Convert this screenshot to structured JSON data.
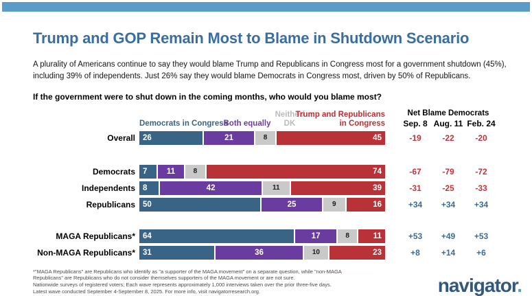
{
  "header": {
    "title": "Trump and GOP Remain Most to Blame in Shutdown Scenario",
    "subtitle": "A plurality of Americans continue to say they would blame Trump and Republicans in Congress most for a government shutdown (45%), including 39% of independents. Just 26% say they would blame Democrats in Congress most, driven by 50% of Republicans.",
    "question": "If the government were to shut down in the coming months, who would you blame most?"
  },
  "legend": {
    "democrats": "Democrats in Congress",
    "both": "Both equally",
    "neither_line1": "Neither/",
    "neither_line2": "DK",
    "trump_line1": "Trump and Republicans",
    "trump_line2": "in Congress"
  },
  "net": {
    "title": "Net Blame Democrats",
    "columns": [
      "Sep. 8",
      "Aug. 11",
      "Feb. 24"
    ]
  },
  "chart_data": {
    "type": "bar",
    "stacked": true,
    "unit": "percent",
    "title": "If the government were to shut down in the coming months, who would you blame most?",
    "categories": [
      "Overall",
      "Democrats",
      "Independents",
      "Republicans",
      "MAGA Republicans*",
      "Non-MAGA Republicans*"
    ],
    "series_labels": [
      "Democrats in Congress",
      "Both equally",
      "Neither/DK",
      "Trump and Republicans in Congress"
    ],
    "series_names": [
      "segment-democrats-in-congress",
      "segment-both-equally",
      "segment-neither-dk",
      "segment-trump-republicans-in-congress"
    ],
    "series_colors": [
      "#3A6485",
      "#6B3CA0",
      "#C9C9C9",
      "#B93238"
    ],
    "xlim": [
      0,
      100
    ],
    "net_columns": [
      "Sep. 8",
      "Aug. 11",
      "Feb. 24"
    ],
    "net_title": "Net Blame Democrats",
    "rows": [
      {
        "label": "Overall",
        "values": [
          26,
          21,
          8,
          45
        ],
        "net": [
          "-19",
          "-22",
          "-20"
        ],
        "gap": "first"
      },
      {
        "label": "Democrats",
        "values": [
          7,
          11,
          8,
          74
        ],
        "net": [
          "-67",
          "-79",
          "-72"
        ],
        "gap": "gap-lg"
      },
      {
        "label": "Independents",
        "values": [
          8,
          42,
          11,
          39
        ],
        "net": [
          "-31",
          "-25",
          "-33"
        ],
        "gap": ""
      },
      {
        "label": "Republicans",
        "values": [
          50,
          25,
          9,
          16
        ],
        "net": [
          "+34",
          "+34",
          "+34"
        ],
        "gap": ""
      },
      {
        "label": "MAGA Republicans*",
        "values": [
          64,
          17,
          8,
          11
        ],
        "net": [
          "+53",
          "+49",
          "+53"
        ],
        "gap": "gap-md"
      },
      {
        "label": "Non-MAGA Republicans*",
        "values": [
          31,
          36,
          10,
          23
        ],
        "net": [
          "+8",
          "+14",
          "+6"
        ],
        "gap": ""
      }
    ]
  },
  "colors": {
    "topbar": "#5B9BC8",
    "title_blue": "#3A6DA0",
    "bar_blue": "#3A6485",
    "bar_purple": "#6B3CA0",
    "bar_gray": "#C9C9C9",
    "bar_red": "#B93238",
    "net_positive": "#3C6C94",
    "net_negative": "#C2333B",
    "logo_blue": "#33587E",
    "logo_dot_blue": "#5B9BC8"
  },
  "footnote": {
    "lines": [
      "*\"MAGA Republicans\" are Republicans who identify as \"a supporter of the MAGA movement\" on a separate question, while \"non-MAGA",
      "Republicans\" are Republicans who do not consider themselves supporters of the MAGA movement or are not sure.",
      "Nationwide surveys of registered voters; Each wave represents approximately 1,000 interviews taken over the prior three-five days.",
      "Latest wave conducted September 4-September 8, 2025. For more info, visit navigatorresearch.org."
    ]
  },
  "logo": {
    "text": "navigator",
    "dot": "."
  }
}
